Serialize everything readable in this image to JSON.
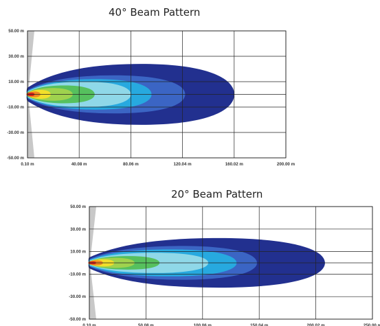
{
  "chart_data": [
    {
      "type": "heatmap",
      "title": "40° Beam Pattern",
      "x_ticks": [
        "0.10 m",
        "40.08 m",
        "80.06 m",
        "120.04 m",
        "160.02 m",
        "200.00 m"
      ],
      "y_ticks": [
        "50.00 m",
        "30.00 m",
        "10.00 m",
        "-10.00 m",
        "-30.00 m",
        "-50.00 m"
      ],
      "x_range": [
        0.1,
        200.0
      ],
      "y_range": [
        -50.0,
        50.0
      ],
      "grid": true,
      "contours": [
        {
          "level": 1,
          "color": "#22308f",
          "reach": 160,
          "half_width": 24
        },
        {
          "level": 2,
          "color": "#3b65c4",
          "reach": 122,
          "half_width": 15
        },
        {
          "level": 3,
          "color": "#27a9df",
          "reach": 96,
          "half_width": 12
        },
        {
          "level": 4,
          "color": "#8fd8e8",
          "reach": 80,
          "half_width": 10
        },
        {
          "level": 5,
          "color": "#56c05e",
          "reach": 52,
          "half_width": 7
        },
        {
          "level": 6,
          "color": "#9fd24e",
          "reach": 35,
          "half_width": 5
        },
        {
          "level": 7,
          "color": "#f2df2b",
          "reach": 18,
          "half_width": 3.5
        },
        {
          "level": 8,
          "color": "#f08a22",
          "reach": 10,
          "half_width": 2.3
        },
        {
          "level": 9,
          "color": "#d8231a",
          "reach": 5.5,
          "half_width": 1.4
        }
      ]
    },
    {
      "type": "heatmap",
      "title": "20° Beam Pattern",
      "x_ticks": [
        "0.10 m",
        "50.08 m",
        "100.06 m",
        "150.04 m",
        "200.02 m",
        "250.00 m"
      ],
      "y_ticks": [
        "50.00 m",
        "30.00 m",
        "10.00 m",
        "-10.00 m",
        "-30.00 m",
        "-50.00 m"
      ],
      "x_range": [
        0.1,
        250.0
      ],
      "y_range": [
        -50.0,
        50.0
      ],
      "grid": true,
      "contours": [
        {
          "level": 1,
          "color": "#22308f",
          "reach": 208,
          "half_width": 22
        },
        {
          "level": 2,
          "color": "#3b65c4",
          "reach": 148,
          "half_width": 15
        },
        {
          "level": 3,
          "color": "#27a9df",
          "reach": 130,
          "half_width": 12
        },
        {
          "level": 4,
          "color": "#8fd8e8",
          "reach": 105,
          "half_width": 9
        },
        {
          "level": 5,
          "color": "#56c05e",
          "reach": 62,
          "half_width": 6
        },
        {
          "level": 6,
          "color": "#9fd24e",
          "reach": 40,
          "half_width": 4.5
        },
        {
          "level": 7,
          "color": "#f2df2b",
          "reach": 22,
          "half_width": 3.2
        },
        {
          "level": 8,
          "color": "#f08a22",
          "reach": 12,
          "half_width": 2.2
        },
        {
          "level": 9,
          "color": "#d8231a",
          "reach": 6,
          "half_width": 1.3
        }
      ]
    }
  ]
}
